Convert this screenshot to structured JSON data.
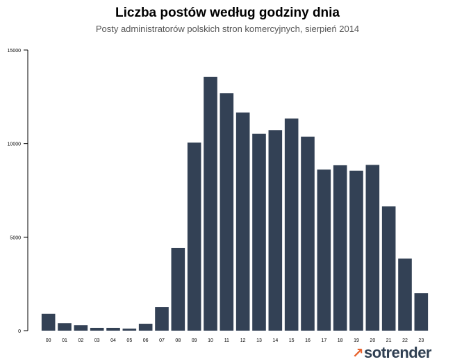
{
  "chart_data": {
    "type": "bar",
    "title": "Liczba postów według godziny dnia",
    "subtitle": "Posty administratorów polskich stron komercyjnych, sierpień 2014",
    "xlabel": "",
    "ylabel": "",
    "categories": [
      "00",
      "01",
      "02",
      "03",
      "04",
      "05",
      "06",
      "07",
      "08",
      "09",
      "10",
      "11",
      "12",
      "13",
      "14",
      "15",
      "16",
      "17",
      "18",
      "19",
      "20",
      "21",
      "22",
      "23"
    ],
    "values": [
      900,
      400,
      290,
      150,
      150,
      110,
      370,
      1260,
      4420,
      10050,
      13560,
      12690,
      11660,
      10520,
      10720,
      11340,
      10370,
      8610,
      8840,
      8550,
      8860,
      6640,
      3850,
      2000
    ],
    "ylim": [
      0,
      15000
    ],
    "yticks": [
      0,
      5000,
      10000,
      15000
    ],
    "grid": false,
    "legend": "none",
    "bar_color": "#334155"
  },
  "branding": {
    "logo_text": "sotrender",
    "logo_mark": "↗"
  }
}
